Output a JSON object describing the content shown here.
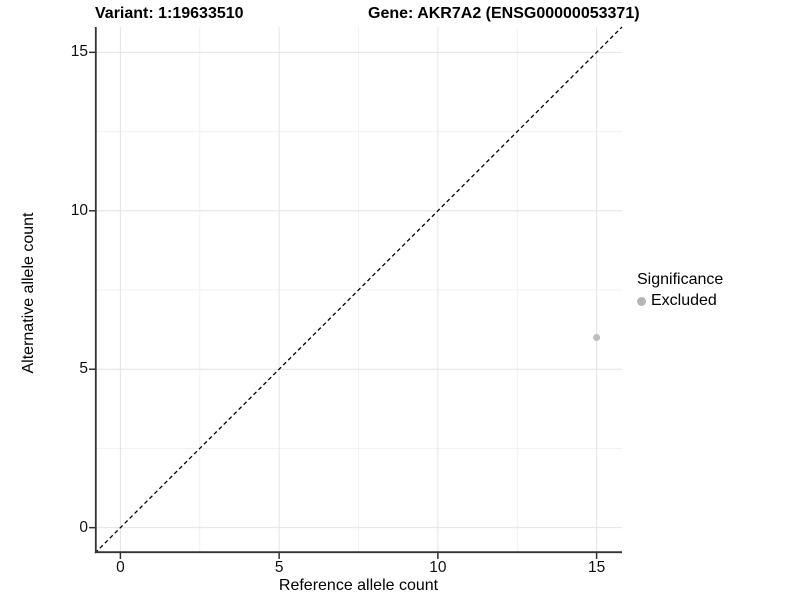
{
  "header": {
    "variant_title": "Variant: 1:19633510",
    "gene_title": "Gene: AKR7A2 (ENSG00000053371)"
  },
  "chart_data": {
    "type": "scatter",
    "title": "Variant: 1:19633510  /  Gene: AKR7A2 (ENSG00000053371)",
    "xlabel": "Reference allele count",
    "ylabel": "Alternative allele count",
    "xlim": [
      -0.8,
      15.8
    ],
    "ylim": [
      -0.8,
      15.8
    ],
    "x_ticks": [
      0,
      5,
      10,
      15
    ],
    "y_ticks": [
      0,
      5,
      10,
      15
    ],
    "x_minor_ticks": [
      2.5,
      7.5,
      12.5
    ],
    "y_minor_ticks": [
      2.5,
      7.5,
      12.5
    ],
    "grid": "major and minor gridlines, light gray on white",
    "identity_line": {
      "equation": "y = x",
      "style": "dashed",
      "color": "#000000"
    },
    "series": [
      {
        "name": "Excluded",
        "color": "#bdbdbd",
        "marker": "circle",
        "points": [
          {
            "x": 15,
            "y": 6
          }
        ]
      }
    ],
    "legend": {
      "title": "Significance",
      "position": "right",
      "items": [
        {
          "label": "Excluded",
          "color": "#b5b5b5",
          "marker": "circle"
        }
      ]
    }
  },
  "colors": {
    "background": "#ffffff",
    "grid_major": "#e4e4e4",
    "grid_minor": "#f1f1f1",
    "axis_line": "#333333",
    "tick_mark": "#333333",
    "tick_text": "#111111",
    "title_text": "#000000",
    "point": "#bdbdbd"
  }
}
